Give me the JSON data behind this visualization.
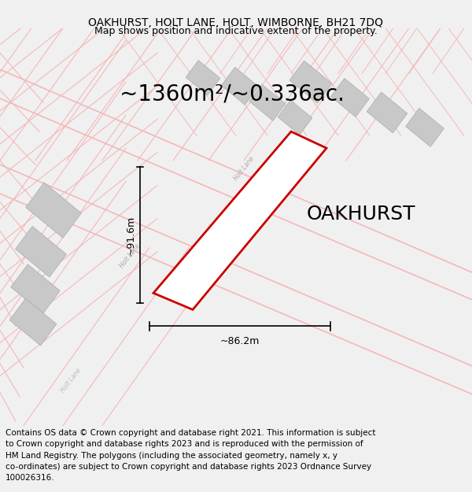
{
  "title": "OAKHURST, HOLT LANE, HOLT, WIMBORNE, BH21 7DQ",
  "subtitle": "Map shows position and indicative extent of the property.",
  "area_label": "~1360m²/~0.336ac.",
  "property_label": "OAKHURST",
  "dim_v": "~91.6m",
  "dim_h": "~86.2m",
  "footer_lines": [
    "Contains OS data © Crown copyright and database right 2021. This information is subject",
    "to Crown copyright and database rights 2023 and is reproduced with the permission of",
    "HM Land Registry. The polygons (including the associated geometry, namely x, y",
    "co-ordinates) are subject to Crown copyright and database rights 2023 Ordnance Survey",
    "100026316."
  ],
  "bg_color": "#f0f0f0",
  "map_bg": "#ffffff",
  "plot_color": "#cc0000",
  "road_color": "#f5b8b8",
  "road_color2": "#e8a0a0",
  "building_color": "#c8c8c8",
  "building_edge": "#aaaaaa",
  "title_fontsize": 10,
  "subtitle_fontsize": 9,
  "area_fontsize": 20,
  "property_fontsize": 18,
  "dim_fontsize": 9,
  "road_label_fontsize": 5.5,
  "footer_fontsize": 7.5
}
